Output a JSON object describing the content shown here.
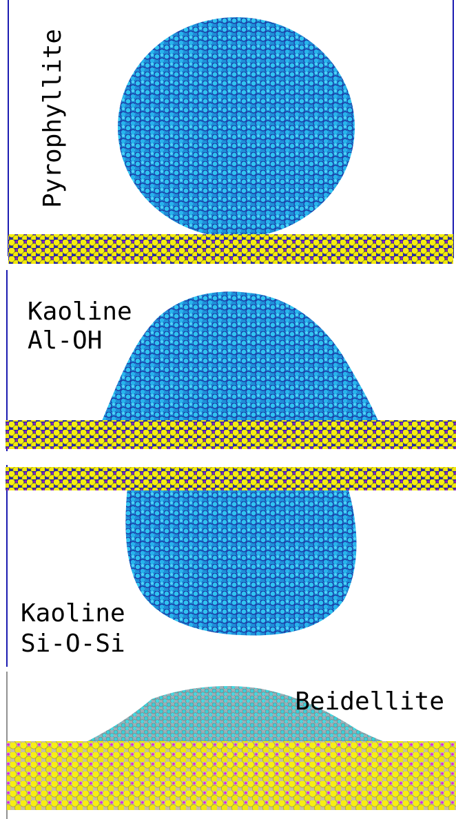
{
  "panels": [
    {
      "lines": [
        "Pyrophyllite"
      ]
    },
    {
      "lines": [
        "Kaoline",
        "Al-OH"
      ]
    },
    {
      "lines": [
        "Kaoline",
        "Si-O-Si"
      ]
    },
    {
      "lines": [
        "Beidellite"
      ]
    }
  ]
}
